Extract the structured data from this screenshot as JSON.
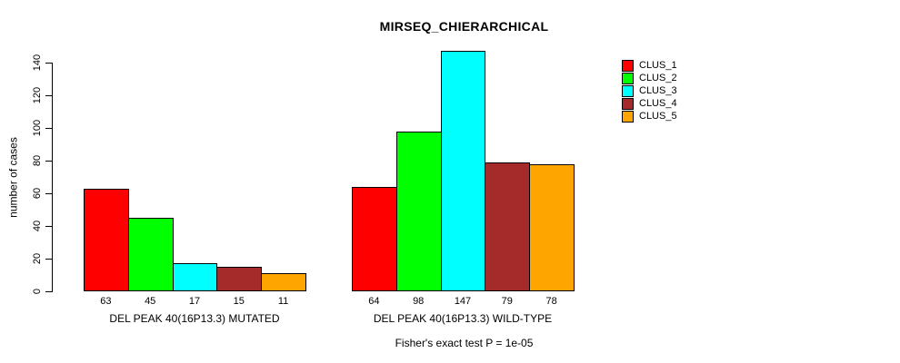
{
  "chart_data": {
    "type": "bar",
    "title": "MIRSEQ_CHIERARCHICAL",
    "ylabel": "number of cases",
    "subtitle": "Fisher's exact test P = 1e-05",
    "categories": [
      "DEL PEAK 40(16P13.3) MUTATED",
      "DEL PEAK 40(16P13.3) WILD-TYPE"
    ],
    "series": [
      {
        "name": "CLUS_1",
        "color": "#FF0000",
        "values": [
          63,
          64
        ]
      },
      {
        "name": "CLUS_2",
        "color": "#00FF00",
        "values": [
          45,
          98
        ]
      },
      {
        "name": "CLUS_3",
        "color": "#00FFFF",
        "values": [
          17,
          147
        ]
      },
      {
        "name": "CLUS_4",
        "color": "#A52A2A",
        "values": [
          15,
          79
        ]
      },
      {
        "name": "CLUS_5",
        "color": "#FFA500",
        "values": [
          11,
          78
        ]
      }
    ],
    "yticks": [
      0,
      20,
      40,
      60,
      80,
      100,
      120,
      140
    ],
    "ylim": [
      0,
      140
    ],
    "show_bar_value_labels": true,
    "legend_position": "top-right",
    "grid": false,
    "axis_color": "#000000",
    "background_color": "#FFFFFF"
  }
}
